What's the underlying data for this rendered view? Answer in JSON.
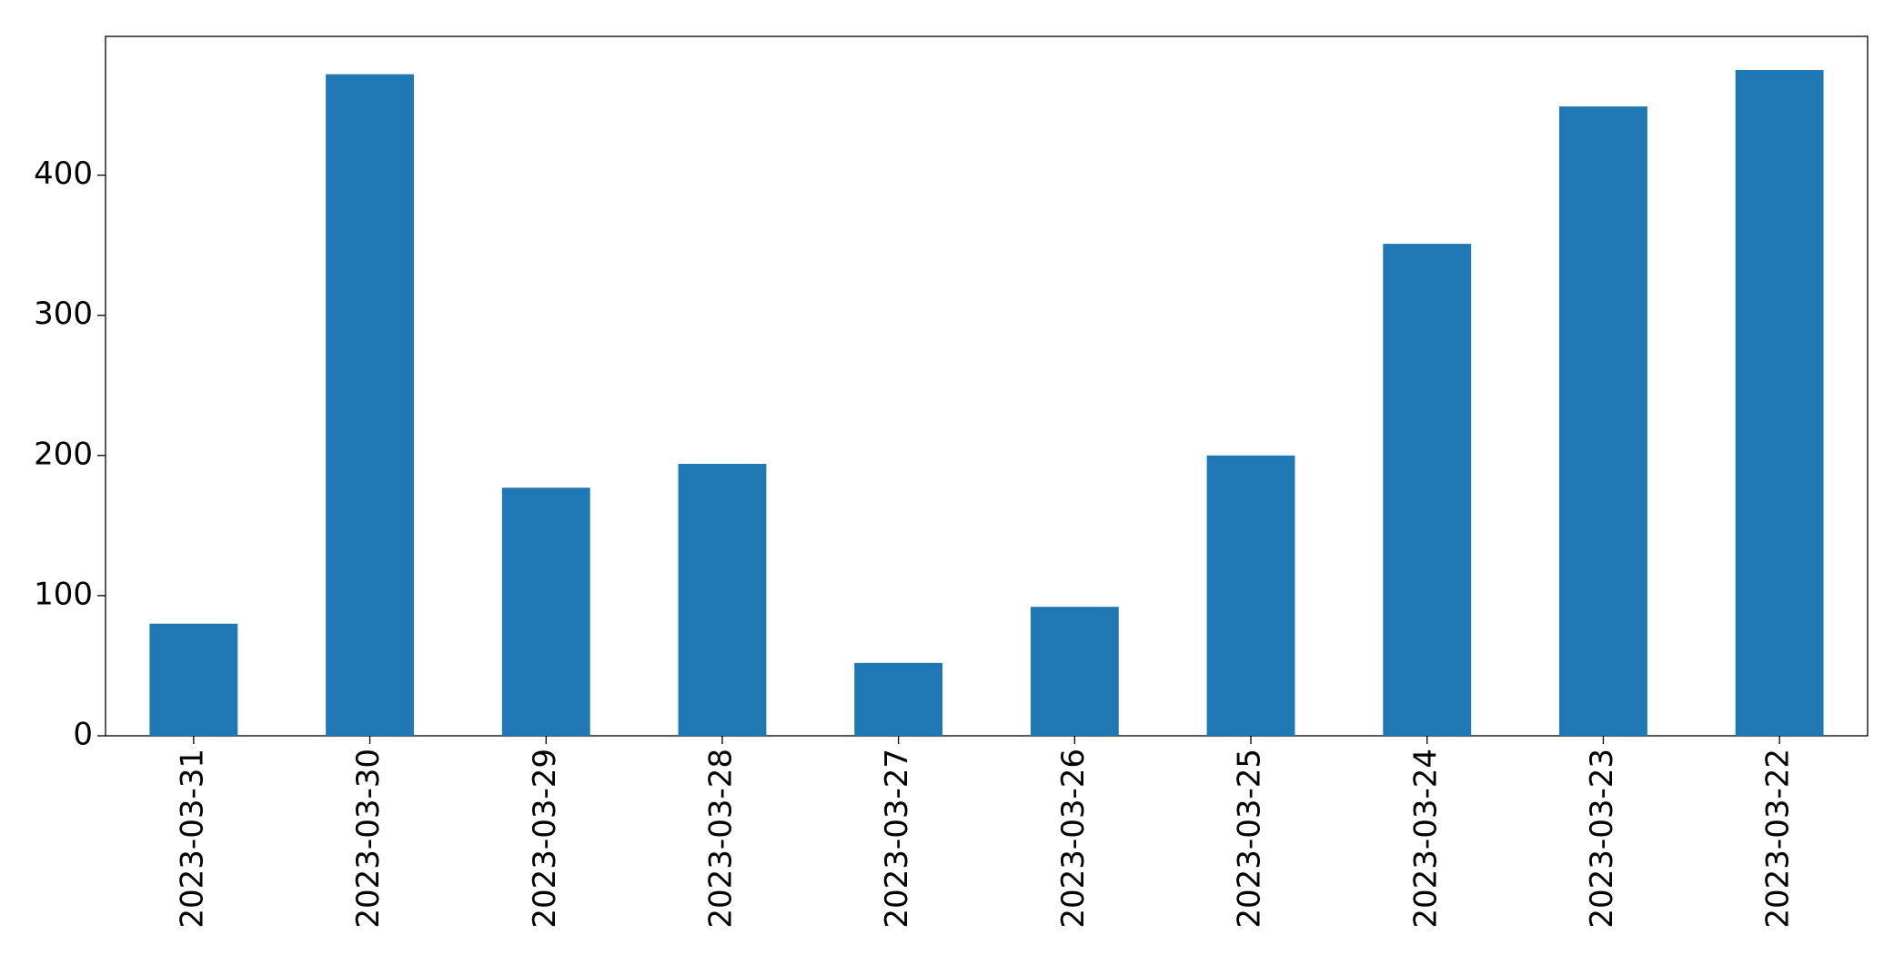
{
  "chart_data": {
    "type": "bar",
    "categories": [
      "2023-03-31",
      "2023-03-30",
      "2023-03-29",
      "2023-03-28",
      "2023-03-27",
      "2023-03-26",
      "2023-03-25",
      "2023-03-24",
      "2023-03-23",
      "2023-03-22"
    ],
    "values": [
      80,
      472,
      177,
      194,
      52,
      92,
      200,
      351,
      449,
      475
    ],
    "color": "#1f77b4",
    "ylim": [
      0,
      499
    ],
    "yticks": [
      0,
      100,
      200,
      300,
      400
    ],
    "grid": false
  }
}
